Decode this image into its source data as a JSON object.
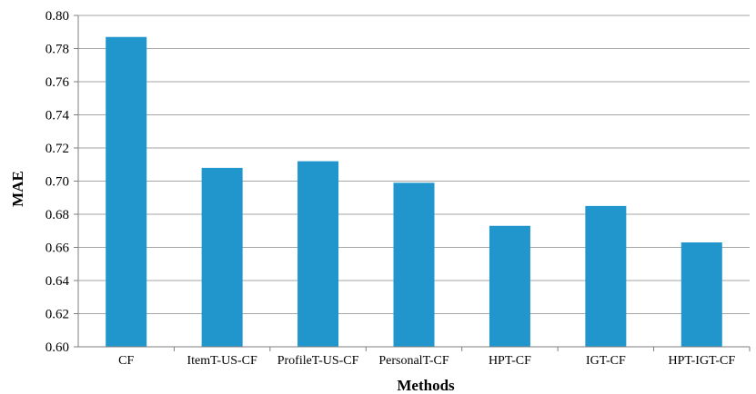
{
  "chart_data": {
    "type": "bar",
    "title": "",
    "xlabel": "Methods",
    "ylabel": "MAE",
    "categories": [
      "CF",
      "ItemT-US-CF",
      "ProfileT-US-CF",
      "PersonalT-CF",
      "HPT-CF",
      "IGT-CF",
      "HPT-IGT-CF"
    ],
    "values": [
      0.787,
      0.708,
      0.712,
      0.699,
      0.673,
      0.685,
      0.663
    ],
    "ylim": [
      0.6,
      0.8
    ],
    "yticks": [
      "0.60",
      "0.62",
      "0.64",
      "0.66",
      "0.68",
      "0.70",
      "0.72",
      "0.74",
      "0.76",
      "0.78",
      "0.80"
    ],
    "grid": true,
    "legend": "none",
    "bar_color": "#2196CC",
    "grid_color": "#A6A6A6"
  }
}
